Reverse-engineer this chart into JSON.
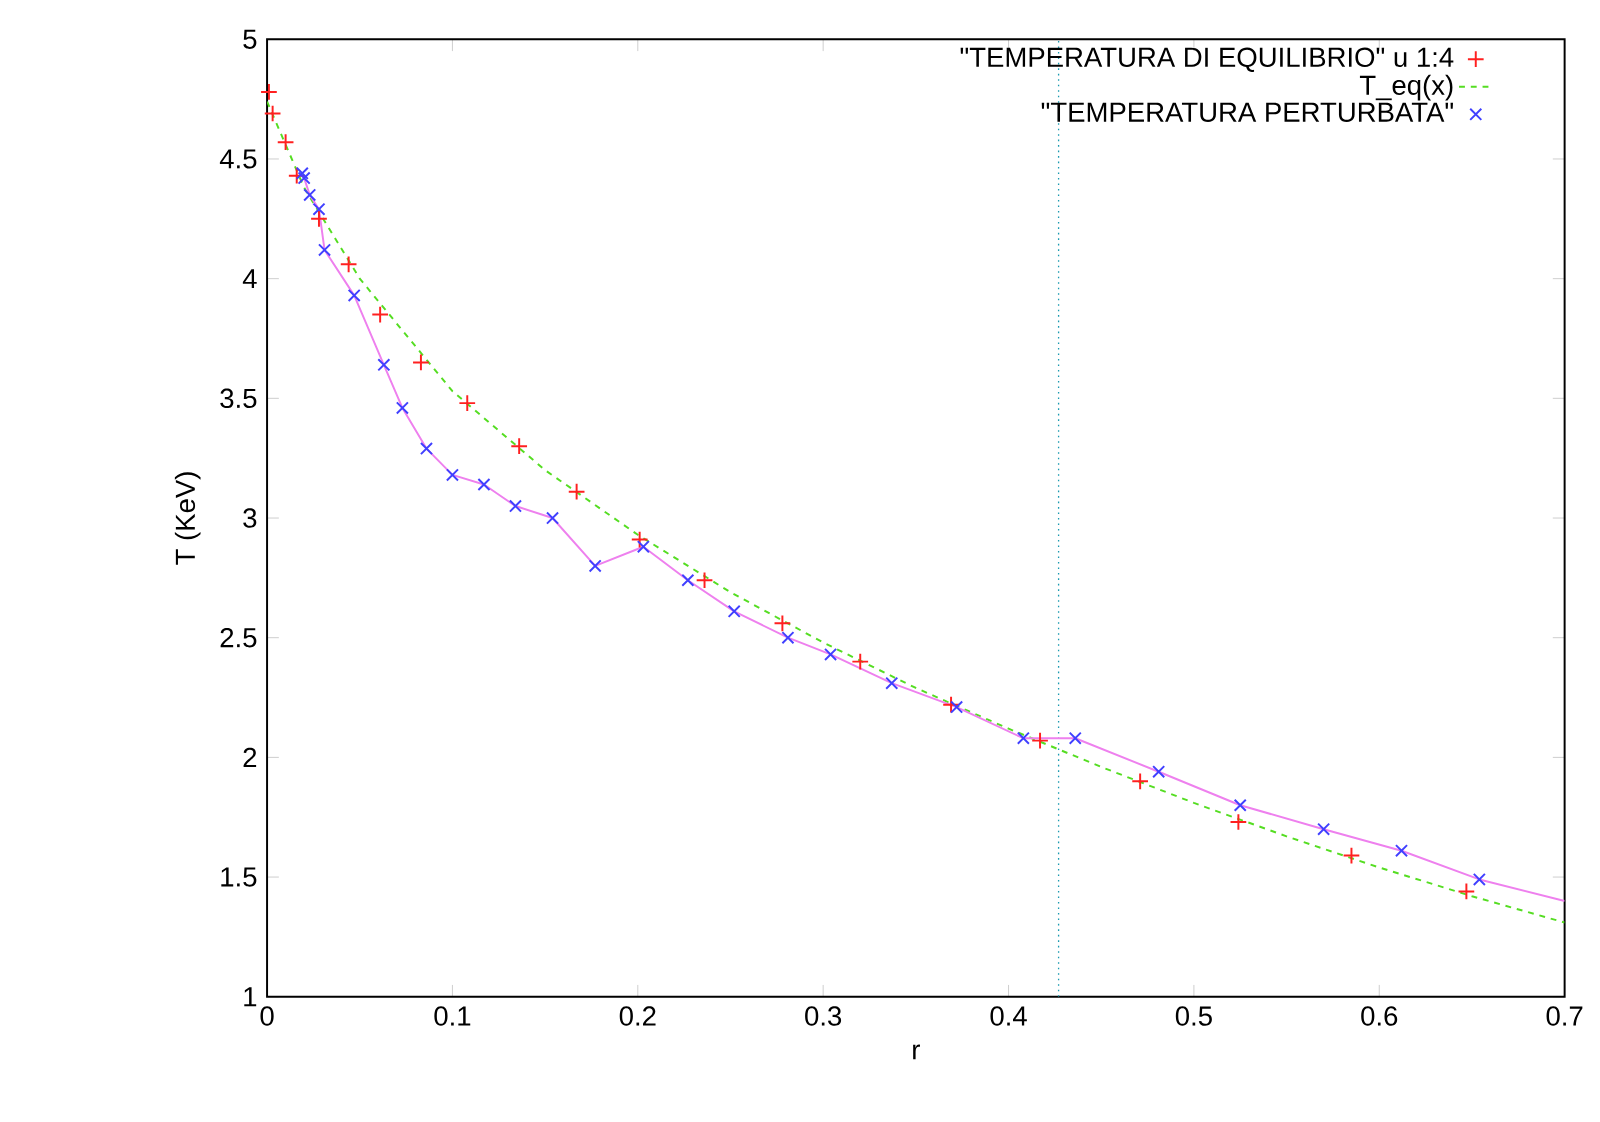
{
  "chart_data": {
    "type": "line",
    "xlabel": "r",
    "ylabel": "T (KeV)",
    "xlim": [
      0,
      0.7
    ],
    "ylim": [
      1,
      5
    ],
    "xticks": [
      0,
      0.1,
      0.2,
      0.3,
      0.4,
      0.5,
      0.6,
      0.7
    ],
    "yticks": [
      1,
      1.5,
      2,
      2.5,
      3,
      3.5,
      4,
      4.5,
      5
    ],
    "legend": "top right",
    "ref_lines": [
      {
        "axis": "x",
        "value": 0.427,
        "color": "#1a9ab0",
        "line_style": "dotted"
      }
    ],
    "series": [
      {
        "name": "\"TEMPERATURA DI EQUILIBRIO\" u 1:4",
        "type": "scatter",
        "marker": "plus",
        "color": "#ff2020",
        "x": [
          0.001,
          0.003,
          0.01,
          0.016,
          0.028,
          0.044,
          0.061,
          0.083,
          0.108,
          0.136,
          0.167,
          0.201,
          0.236,
          0.278,
          0.32,
          0.369,
          0.417,
          0.471,
          0.524,
          0.585,
          0.647
        ],
        "values": [
          4.78,
          4.69,
          4.57,
          4.43,
          4.25,
          4.06,
          3.85,
          3.65,
          3.48,
          3.3,
          3.11,
          2.91,
          2.74,
          2.56,
          2.4,
          2.22,
          2.07,
          1.9,
          1.73,
          1.59,
          1.44
        ]
      },
      {
        "name": "T_eq(x)",
        "line_style": "dashed",
        "marker": "none",
        "color": "#55dd22",
        "x": [
          0,
          0.02,
          0.05,
          0.1,
          0.15,
          0.2,
          0.25,
          0.3,
          0.35,
          0.4,
          0.45,
          0.5,
          0.55,
          0.6,
          0.65,
          0.7
        ],
        "values": [
          4.74,
          4.38,
          4.0,
          3.53,
          3.2,
          2.93,
          2.69,
          2.48,
          2.29,
          2.12,
          1.96,
          1.81,
          1.67,
          1.54,
          1.42,
          1.31
        ]
      },
      {
        "line_style": "solid",
        "marker": "none",
        "color": "#ee80ee",
        "x": [
          0.02,
          0.023,
          0.028,
          0.031,
          0.047,
          0.063,
          0.073,
          0.086,
          0.1,
          0.117,
          0.134,
          0.154,
          0.177,
          0.203,
          0.227,
          0.252,
          0.281,
          0.304,
          0.337,
          0.372,
          0.408,
          0.436,
          0.481,
          0.525,
          0.57,
          0.612,
          0.654,
          0.7
        ],
        "values": [
          4.42,
          4.35,
          4.29,
          4.12,
          3.93,
          3.64,
          3.46,
          3.29,
          3.18,
          3.14,
          3.05,
          3.0,
          2.8,
          2.88,
          2.74,
          2.61,
          2.5,
          2.43,
          2.31,
          2.21,
          2.08,
          2.08,
          1.94,
          1.8,
          1.7,
          1.61,
          1.49,
          1.4
        ]
      },
      {
        "name": "\"TEMPERATURA PERTURBATA\"",
        "type": "scatter",
        "marker": "cross",
        "color": "#4040ff",
        "x": [
          0.019,
          0.02,
          0.023,
          0.028,
          0.031,
          0.047,
          0.063,
          0.073,
          0.086,
          0.1,
          0.117,
          0.134,
          0.154,
          0.177,
          0.203,
          0.227,
          0.252,
          0.281,
          0.304,
          0.337,
          0.372,
          0.408,
          0.436,
          0.481,
          0.525,
          0.57,
          0.612,
          0.654
        ],
        "values": [
          4.44,
          4.42,
          4.35,
          4.29,
          4.12,
          3.93,
          3.64,
          3.46,
          3.29,
          3.18,
          3.14,
          3.05,
          3.0,
          2.8,
          2.88,
          2.74,
          2.61,
          2.5,
          2.43,
          2.31,
          2.21,
          2.08,
          2.08,
          1.94,
          1.8,
          1.7,
          1.61,
          1.49
        ]
      }
    ]
  }
}
